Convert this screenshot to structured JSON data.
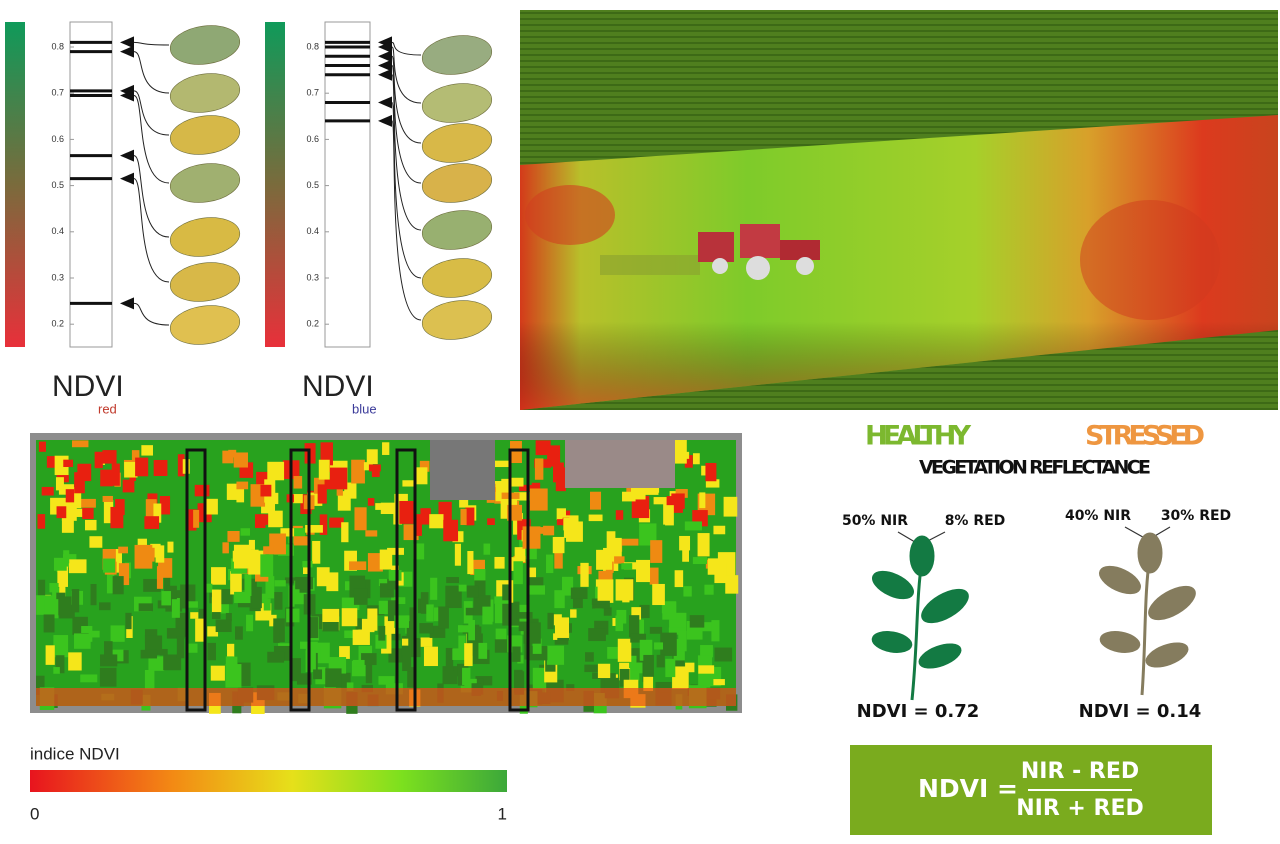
{
  "leaf_scales": [
    {
      "title": "NDVI",
      "subscript": "red",
      "ticks": [
        0.8,
        0.7,
        0.6,
        0.5,
        0.4,
        0.3,
        0.2
      ],
      "levels": [
        0.81,
        0.79,
        0.705,
        0.695,
        0.565,
        0.515,
        0.245
      ]
    },
    {
      "title": "NDVI",
      "subscript": "blue",
      "ticks": [
        0.8,
        0.7,
        0.6,
        0.5,
        0.4,
        0.3,
        0.2
      ],
      "levels": [
        0.81,
        0.8,
        0.78,
        0.76,
        0.74,
        0.68,
        0.64
      ]
    }
  ],
  "map_legend": {
    "title": "indice NDVI",
    "min_label": "0",
    "max_label": "1"
  },
  "reflectance": {
    "healthy": "HEALTHY",
    "stressed": "STRESSED",
    "subtitle": "VEGETATION REFLECTANCE",
    "healthy_nir": "50% NIR",
    "healthy_red": "8% RED",
    "stressed_nir": "40% NIR",
    "stressed_red": "30% RED",
    "healthy_ndvi": "NDVI = 0.72",
    "stressed_ndvi": "NDVI = 0.14"
  },
  "formula": {
    "lhs": "NDVI =",
    "numerator": "NIR - RED",
    "denominator": "NIR + RED"
  }
}
